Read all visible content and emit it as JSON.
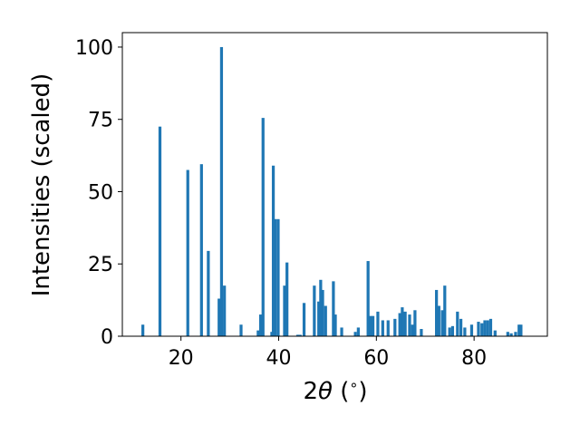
{
  "chart_data": {
    "type": "bar",
    "title": "",
    "xlabel_parts": [
      "2",
      "θ",
      " (",
      "∘",
      ")"
    ],
    "ylabel": "Intensities (scaled)",
    "xlim": [
      8,
      95
    ],
    "ylim": [
      0,
      105
    ],
    "xticks": [
      20,
      40,
      60,
      80
    ],
    "yticks": [
      0,
      25,
      50,
      75,
      100
    ],
    "bar_width": 0.6,
    "bar_color": "#1f77b4",
    "grid": false,
    "x": [
      12.2,
      15.7,
      21.4,
      24.2,
      25.6,
      27.8,
      28.3,
      28.9,
      32.3,
      35.8,
      36.3,
      36.8,
      38.6,
      38.9,
      39.3,
      39.9,
      41.2,
      41.7,
      43.9,
      44.4,
      45.2,
      47.3,
      48.2,
      48.6,
      49.0,
      49.6,
      51.2,
      51.6,
      52.9,
      55.7,
      56.3,
      58.3,
      58.8,
      59.3,
      60.3,
      61.3,
      62.4,
      63.8,
      64.8,
      65.3,
      65.9,
      66.8,
      67.4,
      67.9,
      69.2,
      72.3,
      72.8,
      73.5,
      74.0,
      75.0,
      75.6,
      76.6,
      77.3,
      78.1,
      79.5,
      80.9,
      81.6,
      82.2,
      82.8,
      83.4,
      84.3,
      86.9,
      87.6,
      88.5,
      89.2,
      89.6
    ],
    "values": [
      4,
      72.5,
      57.5,
      59.5,
      29.5,
      13,
      100,
      17.5,
      4,
      2,
      7.5,
      75.5,
      1.5,
      59,
      40.5,
      40.5,
      17.5,
      25.5,
      0.5,
      0.5,
      11.5,
      17.5,
      12,
      19.5,
      16,
      10.5,
      19,
      7.5,
      3,
      1.5,
      3,
      26,
      7,
      7,
      8.5,
      5.5,
      5.5,
      6,
      8,
      10,
      8.5,
      7.5,
      4,
      9,
      2.5,
      16,
      10.5,
      9,
      17.5,
      3,
      3.5,
      8.5,
      6,
      3,
      4,
      5,
      4.5,
      5.5,
      5.5,
      6,
      2,
      1.5,
      1,
      1.5,
      4,
      4
    ]
  }
}
